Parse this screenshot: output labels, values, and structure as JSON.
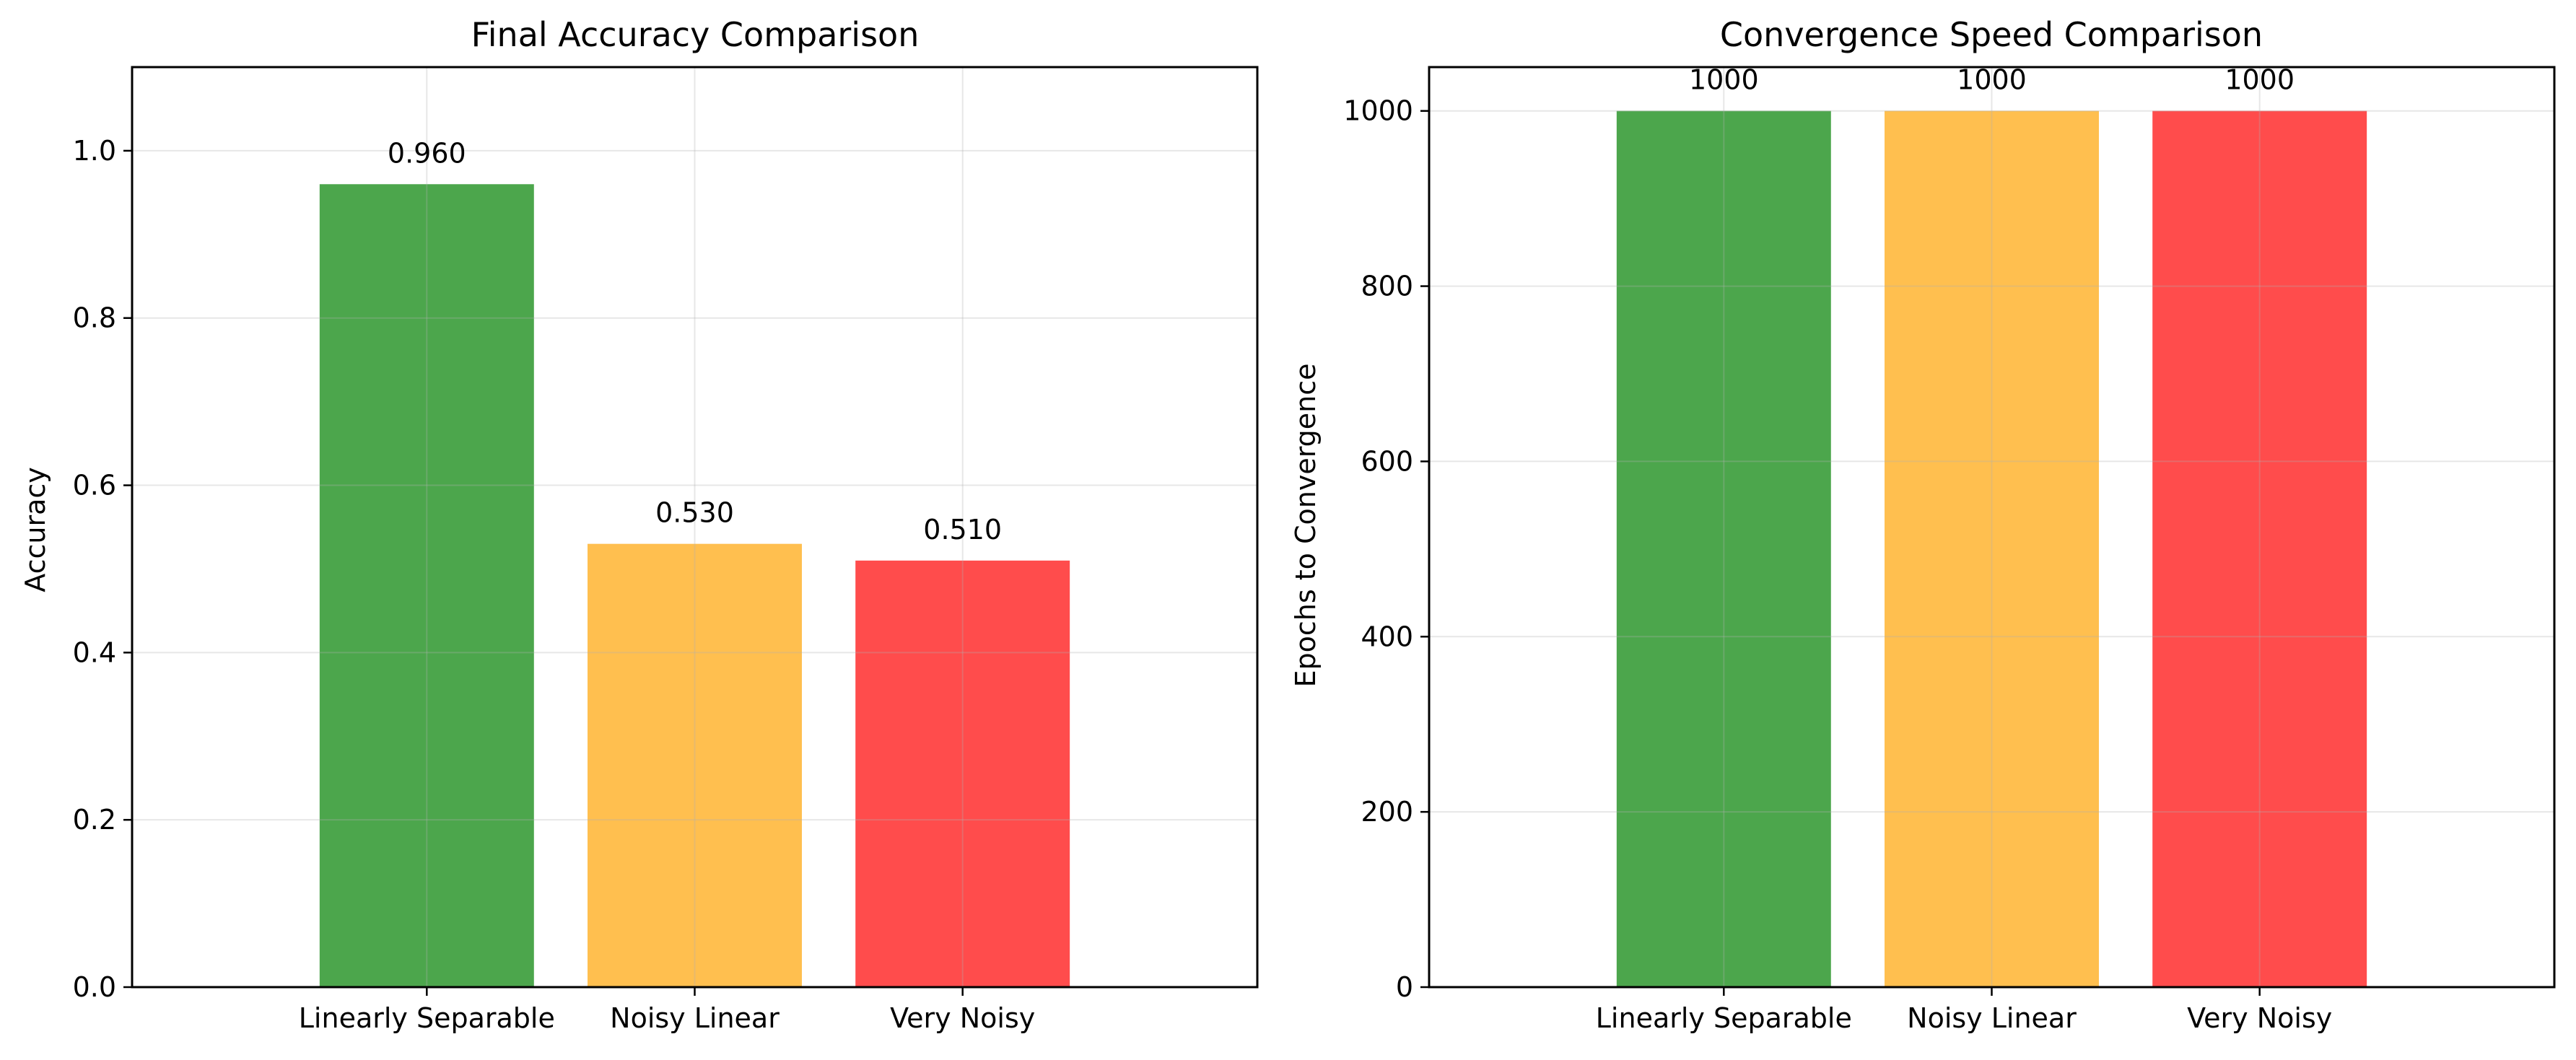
{
  "chart_data": [
    {
      "type": "bar",
      "title": "Final Accuracy Comparison",
      "xlabel": "",
      "ylabel": "Accuracy",
      "categories": [
        "Linearly Separable",
        "Noisy Linear",
        "Very Noisy"
      ],
      "values": [
        0.96,
        0.53,
        0.51
      ],
      "data_labels": [
        "0.960",
        "0.530",
        "0.510"
      ],
      "colors": [
        "#4ca64c",
        "#ffbf4f",
        "#ff4c4c"
      ],
      "ylim": [
        0,
        1.1
      ],
      "yticks": [
        0.0,
        0.2,
        0.4,
        0.6,
        0.8,
        1.0
      ],
      "ytick_labels": [
        "0.0",
        "0.2",
        "0.4",
        "0.6",
        "0.8",
        "1.0"
      ],
      "grid": true
    },
    {
      "type": "bar",
      "title": "Convergence Speed Comparison",
      "xlabel": "",
      "ylabel": "Epochs to Convergence",
      "categories": [
        "Linearly Separable",
        "Noisy Linear",
        "Very Noisy"
      ],
      "values": [
        1000,
        1000,
        1000
      ],
      "data_labels": [
        "1000",
        "1000",
        "1000"
      ],
      "colors": [
        "#4ca64c",
        "#ffbf4f",
        "#ff4c4c"
      ],
      "ylim": [
        0,
        1050
      ],
      "yticks": [
        0,
        200,
        400,
        600,
        800,
        1000
      ],
      "ytick_labels": [
        "0",
        "200",
        "400",
        "600",
        "800",
        "1000"
      ],
      "grid": true
    }
  ]
}
